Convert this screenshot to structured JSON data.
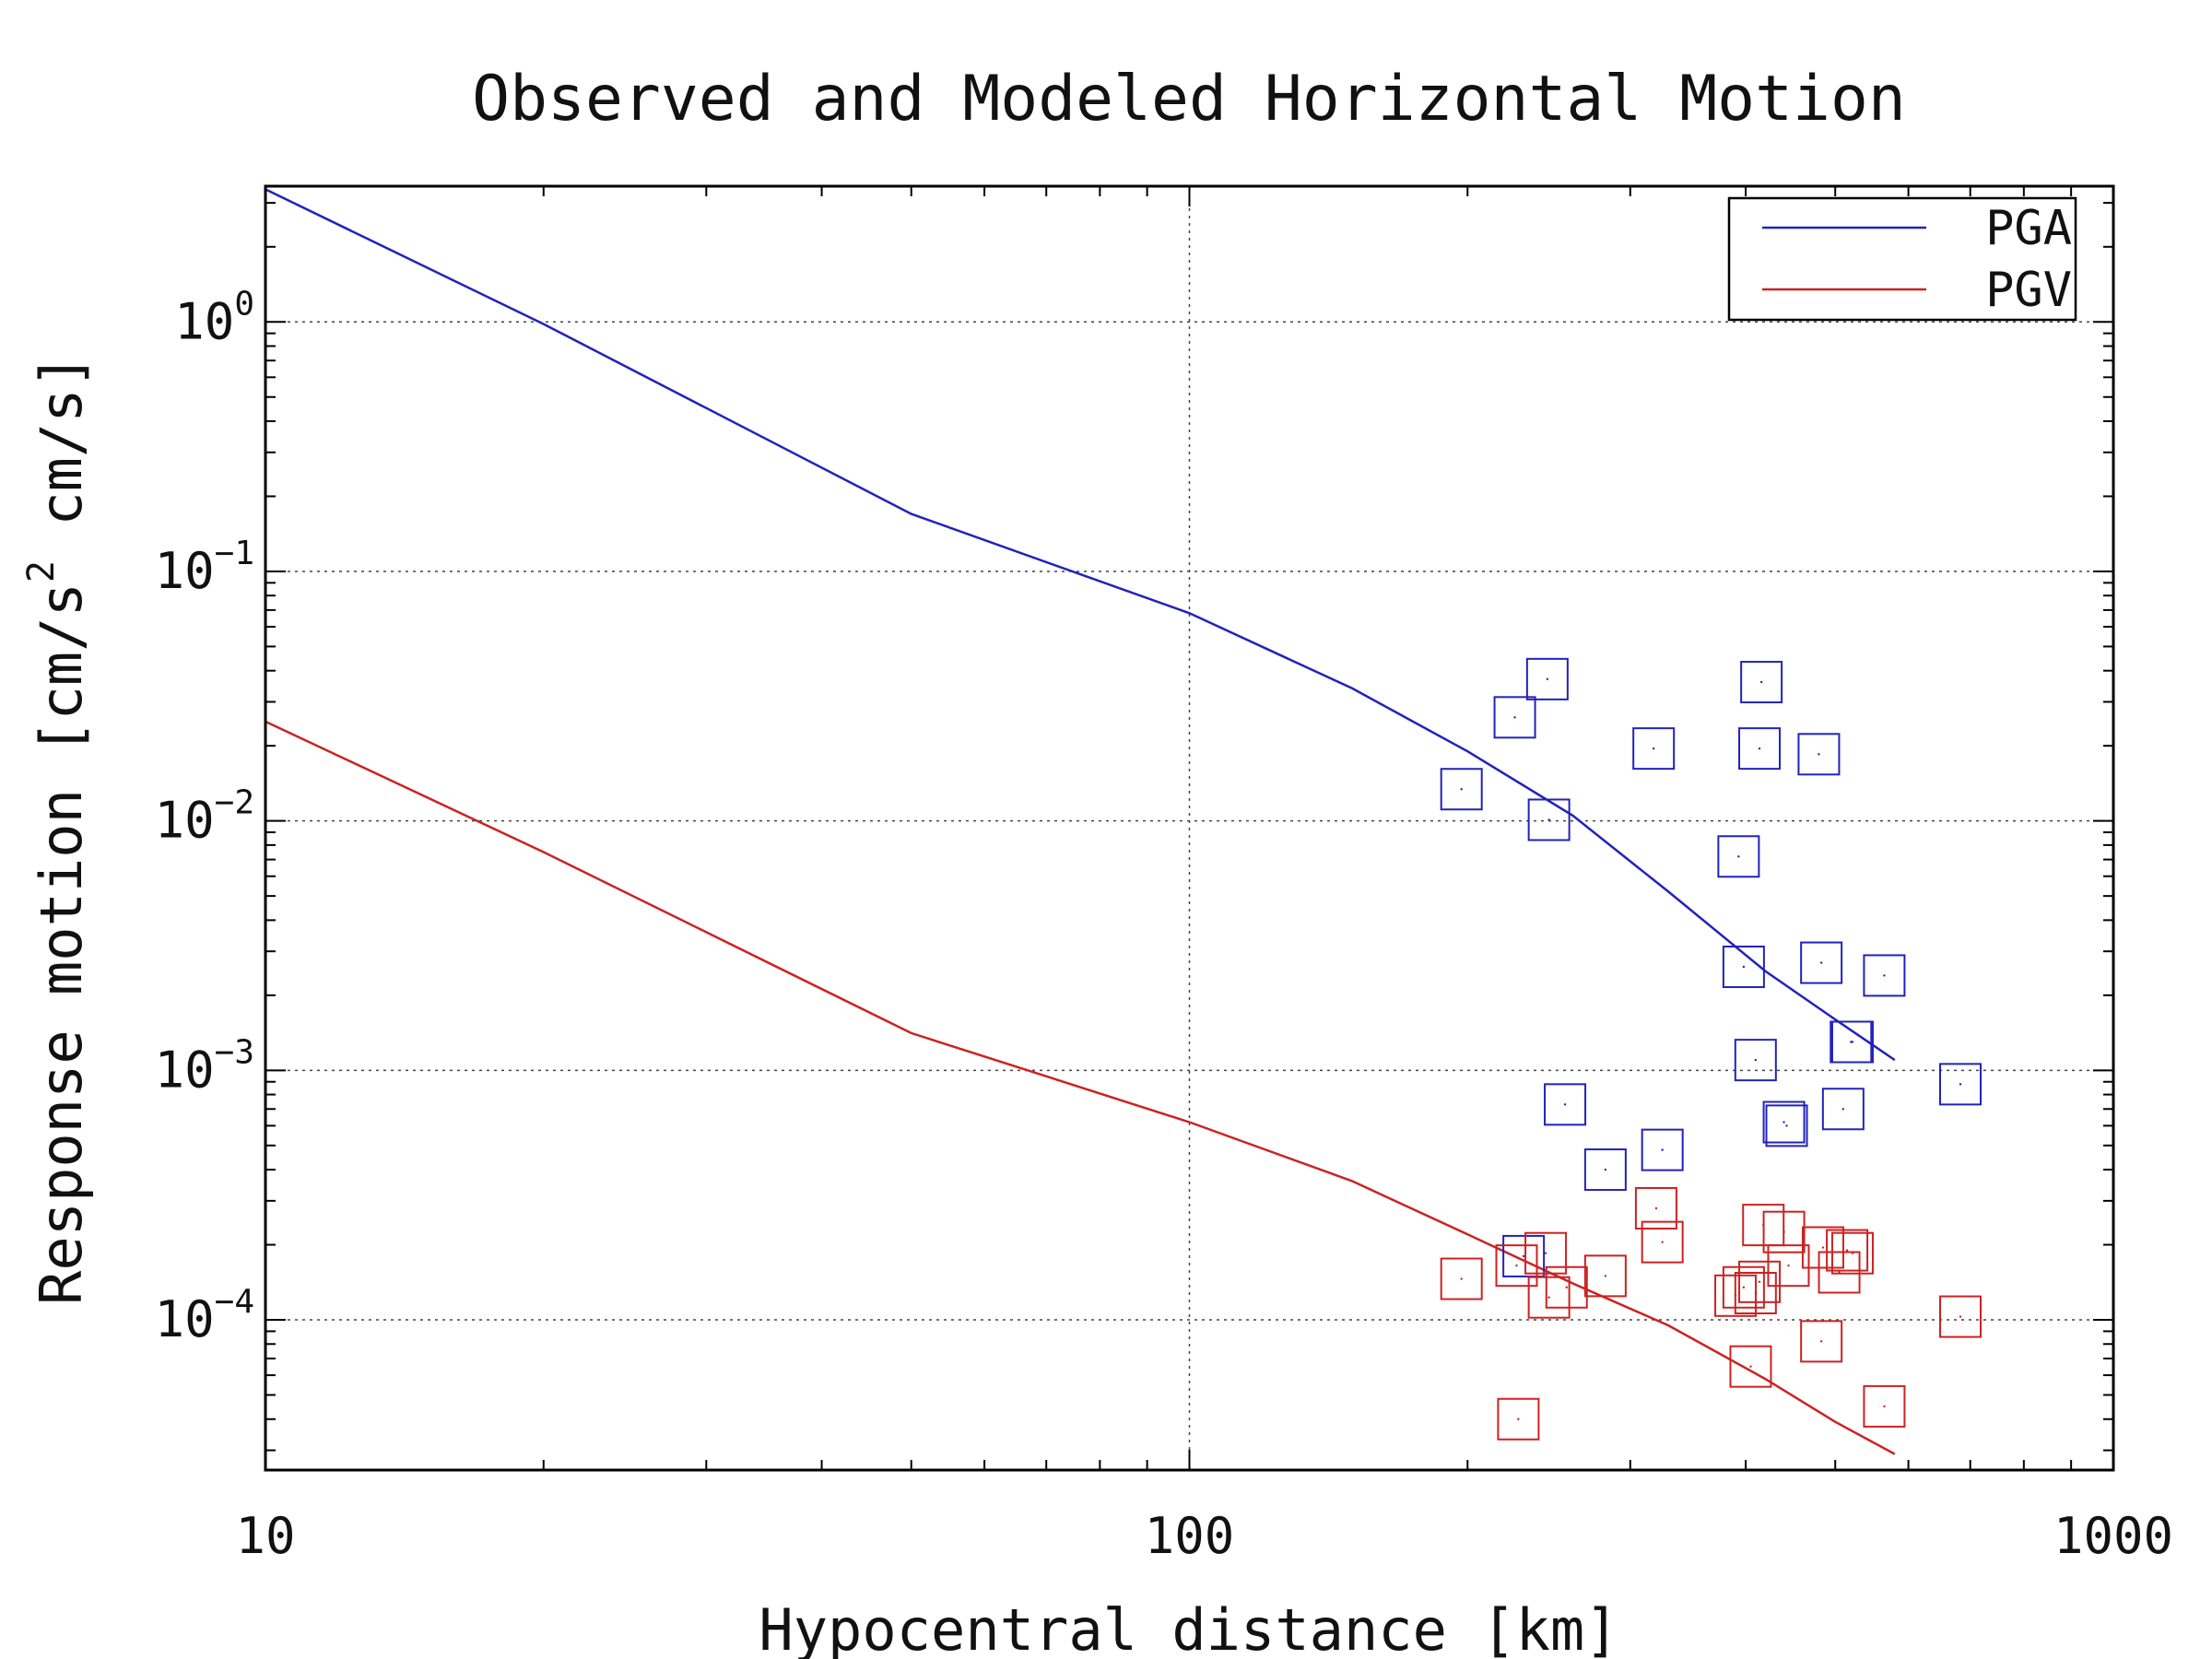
{
  "chart_data": {
    "type": "scatter",
    "title": "Observed and Modeled Horizontal Motion",
    "xlabel": "Hypocentral distance [km]",
    "ylabel": {
      "main": "Response motion  [cm/s",
      "sup": "2",
      "tail": "  cm/s]"
    },
    "x_scale": "log",
    "y_scale": "log",
    "xlim": [
      10,
      1000
    ],
    "ylim": [
      2.5e-05,
      3.5
    ],
    "x_ticks": [
      {
        "value": 10,
        "label": "10"
      },
      {
        "value": 100,
        "label": "100"
      },
      {
        "value": 1000,
        "label": "1000"
      }
    ],
    "y_ticks": [
      {
        "value": 1,
        "base": "10",
        "exp": "0"
      },
      {
        "value": 0.1,
        "base": "10",
        "exp": "−1"
      },
      {
        "value": 0.01,
        "base": "10",
        "exp": "−2"
      },
      {
        "value": 0.001,
        "base": "10",
        "exp": "−3"
      },
      {
        "value": 0.0001,
        "base": "10",
        "exp": "−4"
      }
    ],
    "grid": true,
    "legend": {
      "position": "top-right",
      "entries": [
        "PGA",
        "PGV"
      ]
    },
    "colors": {
      "PGA": "#2222bb",
      "PGV": "#cc2222"
    },
    "series": [
      {
        "name": "PGA",
        "kind": "line",
        "x": [
          10,
          20,
          50,
          100,
          150,
          200,
          260,
          330,
          420,
          500,
          580
        ],
        "y": [
          3.4,
          0.98,
          0.17,
          0.068,
          0.034,
          0.019,
          0.0105,
          0.0052,
          0.0025,
          0.0016,
          0.0011
        ]
      },
      {
        "name": "PGV",
        "kind": "line",
        "x": [
          10,
          20,
          50,
          100,
          150,
          200,
          260,
          330,
          420,
          500,
          580
        ],
        "y": [
          0.025,
          0.0075,
          0.00141,
          0.00062,
          0.00036,
          0.00022,
          0.00014,
          9.5e-05,
          5.8e-05,
          3.9e-05,
          2.9e-05
        ]
      },
      {
        "name": "PGA",
        "kind": "scatter",
        "x": [
          197,
          225,
          230,
          244,
          245,
          255,
          282,
          318,
          325,
          393,
          398,
          410,
          414,
          416,
          440,
          443,
          480,
          483,
          510,
          520,
          522,
          565,
          683
        ],
        "y": [
          0.0134,
          0.026,
          0.00018,
          0.037,
          0.0101,
          0.00073,
          0.0004,
          0.0195,
          0.00048,
          0.0072,
          0.0026,
          0.0011,
          0.0195,
          0.036,
          0.00062,
          0.0006,
          0.0185,
          0.0027,
          0.0007,
          0.0013,
          0.0013,
          0.0024,
          0.00088
        ]
      },
      {
        "name": "PGV",
        "kind": "scatter",
        "x": [
          197,
          226,
          227,
          243,
          245,
          256,
          282,
          320,
          325,
          390,
          398,
          405,
          410,
          414,
          418,
          440,
          445,
          483,
          485,
          505,
          515,
          522,
          565,
          683
        ],
        "y": [
          0.000146,
          0.000165,
          4e-05,
          0.000185,
          0.000123,
          0.000135,
          0.00015,
          0.00028,
          0.000205,
          0.000125,
          0.000135,
          6.5e-05,
          0.000128,
          0.000142,
          0.00024,
          0.000225,
          0.000165,
          8.2e-05,
          0.000195,
          0.000155,
          0.00019,
          0.000185,
          4.5e-05,
          0.000103
        ]
      }
    ]
  }
}
